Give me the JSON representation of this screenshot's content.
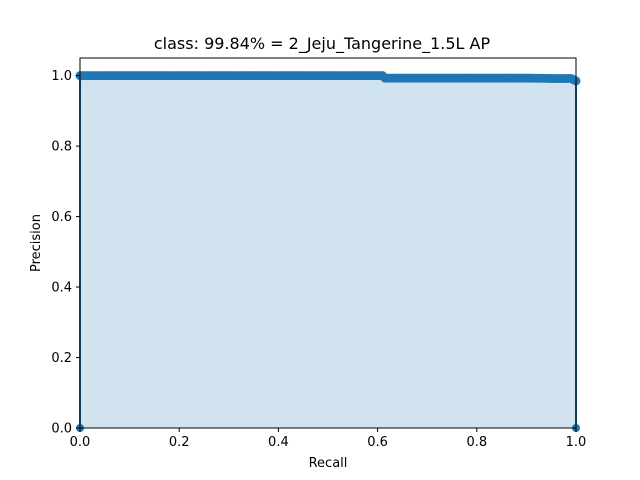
{
  "chart_data": {
    "type": "area",
    "title": "class: 99.84% = 2_Jeju_Tangerine_1.5L AP",
    "xlabel": "Recall",
    "ylabel": "Precision",
    "xlim": [
      0,
      1
    ],
    "ylim": [
      0,
      1.05
    ],
    "x_ticks": [
      "0.0",
      "0.2",
      "0.4",
      "0.6",
      "0.8",
      "1.0"
    ],
    "y_ticks": [
      "0.0",
      "0.2",
      "0.4",
      "0.6",
      "0.8",
      "1.0"
    ],
    "grid": false,
    "legend": "none",
    "colors": {
      "line": "#1f77b4",
      "fill": "#d2e3f0",
      "axis": "#000000"
    },
    "series": [
      {
        "x": [
          0.0,
          0.0,
          0.05,
          0.1,
          0.15,
          0.2,
          0.25,
          0.3,
          0.35,
          0.4,
          0.45,
          0.5,
          0.55,
          0.6,
          0.61,
          0.615,
          0.65,
          0.7,
          0.75,
          0.8,
          0.85,
          0.9,
          0.95,
          0.99,
          1.0,
          1.0,
          1.0
        ],
        "y": [
          0.0,
          1.0,
          1.0,
          1.0,
          1.0,
          1.0,
          1.0,
          1.0,
          1.0,
          1.0,
          1.0,
          1.0,
          1.0,
          1.0,
          1.0,
          0.993,
          0.993,
          0.993,
          0.993,
          0.993,
          0.993,
          0.993,
          0.992,
          0.992,
          0.985,
          0.983,
          0.0
        ]
      }
    ]
  }
}
